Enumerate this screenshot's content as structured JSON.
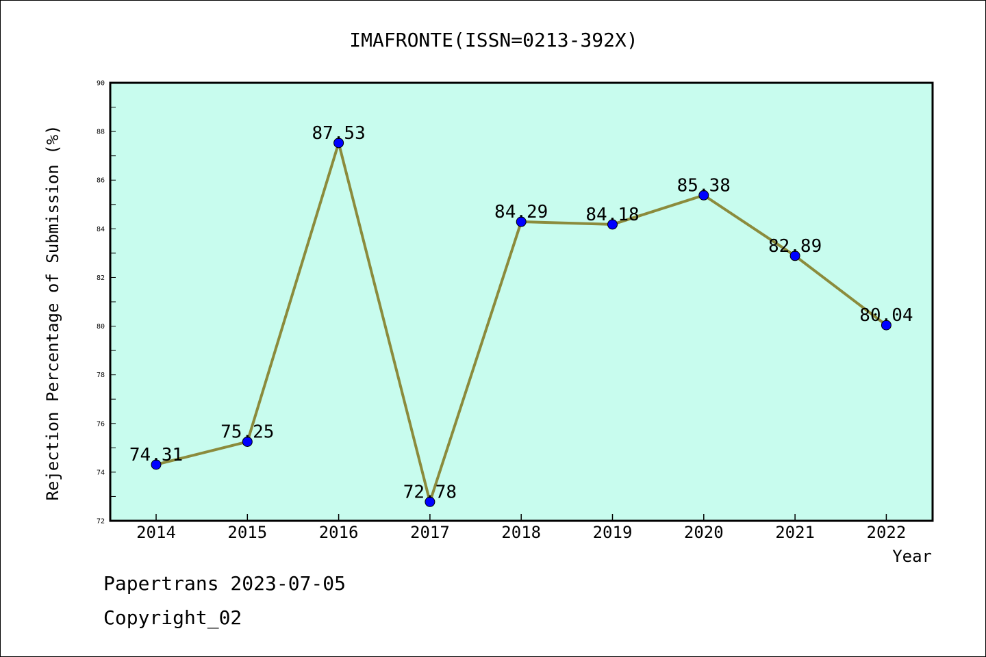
{
  "chart_data": {
    "type": "line",
    "title": "IMAFRONTE(ISSN=0213-392X)",
    "xlabel": "Year",
    "ylabel": "Rejection Percentage of Submission (%)",
    "categories": [
      "2014",
      "2015",
      "2016",
      "2017",
      "2018",
      "2019",
      "2020",
      "2021",
      "2022"
    ],
    "values": [
      74.31,
      75.25,
      87.53,
      72.78,
      84.29,
      84.18,
      85.38,
      82.89,
      80.04
    ],
    "data_labels": [
      "74.31",
      "75.25",
      "87.53",
      "72.78",
      "84.29",
      "84.18",
      "85.38",
      "82.89",
      "80.04"
    ],
    "ylim": [
      72,
      90
    ],
    "yticks": [
      "72",
      "74",
      "76",
      "78",
      "80",
      "82",
      "84",
      "86",
      "88",
      "90"
    ],
    "grid": false,
    "legend": "none",
    "colors": {
      "plot_background": "#c8fcee",
      "line": "#8b8b3c",
      "marker": "#0000ff"
    }
  },
  "footer": {
    "credit": "Papertrans 2023-07-05",
    "copyright": "Copyright_02"
  }
}
